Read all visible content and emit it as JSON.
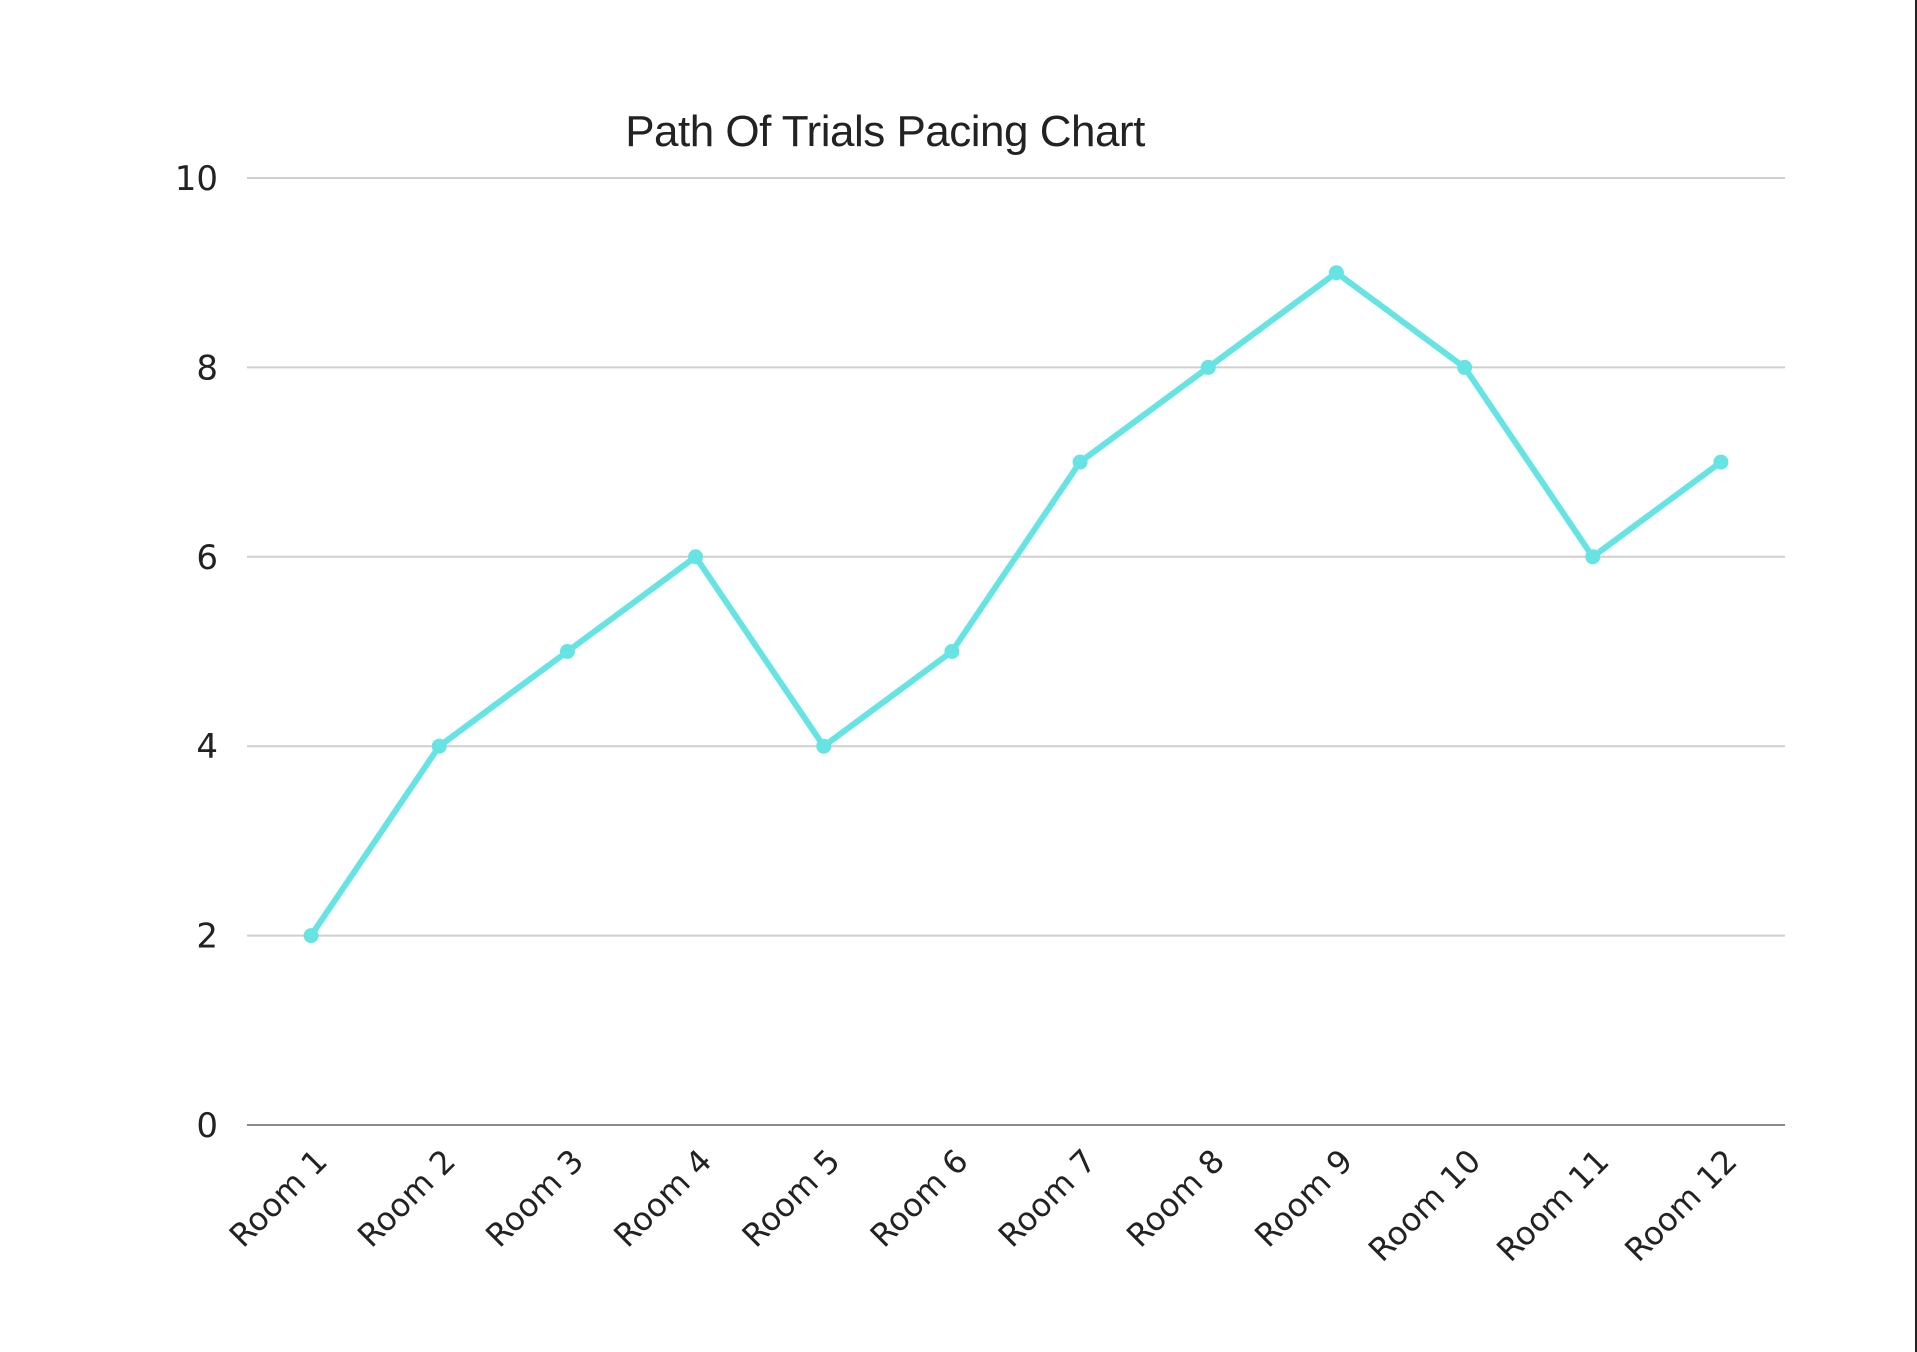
{
  "chart_data": {
    "type": "line",
    "title": "Path Of Trials Pacing Chart",
    "xlabel": "",
    "ylabel": "",
    "categories": [
      "Room 1",
      "Room 2",
      "Room 3",
      "Room 4",
      "Room 5",
      "Room 6",
      "Room 7",
      "Room 8",
      "Room 9",
      "Room 10",
      "Room 11",
      "Room 12"
    ],
    "series": [
      {
        "values": [
          2,
          4,
          5,
          6,
          4,
          5,
          7,
          8,
          9,
          8,
          6,
          7
        ],
        "color": "#66e3e3"
      }
    ],
    "ylim": [
      0,
      10
    ],
    "yticks": [
      0,
      2,
      4,
      6,
      8,
      10
    ],
    "grid": true,
    "legend": "none"
  }
}
